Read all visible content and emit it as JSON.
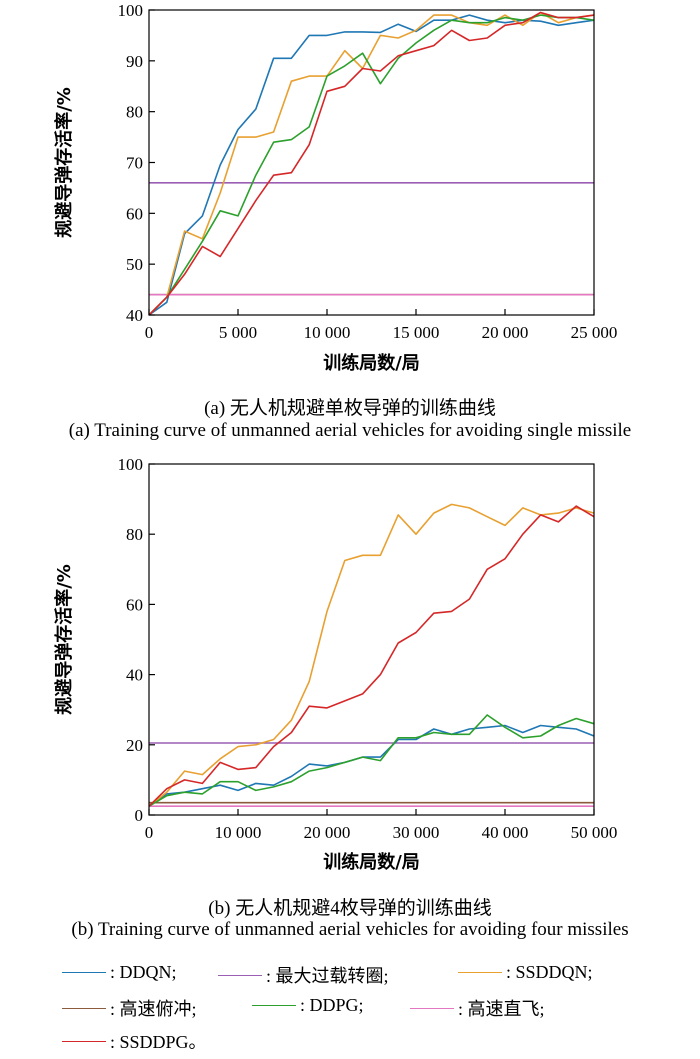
{
  "chart_data": [
    {
      "type": "line",
      "caption_cn": "(a) 无人机规避单枚导弹的训练曲线",
      "caption_en": "(a) Training curve of unmanned aerial vehicles for avoiding single missile",
      "xlabel": "训练局数/局",
      "ylabel": "规避导弹存活率/%",
      "xlim": [
        0,
        25000
      ],
      "ylim": [
        40,
        100
      ],
      "xticks": [
        0,
        5000,
        10000,
        15000,
        20000,
        25000
      ],
      "xtick_labels": [
        "0",
        "5 000",
        "10 000",
        "15 000",
        "20 000",
        "25 000"
      ],
      "yticks": [
        40,
        50,
        60,
        70,
        80,
        90,
        100
      ],
      "ytick_labels": [
        "40",
        "50",
        "60",
        "70",
        "80",
        "90",
        "100"
      ],
      "grid": false,
      "series": [
        {
          "name": "DDQN",
          "color": "#1f77b4",
          "x": [
            0,
            1000,
            2000,
            3000,
            4000,
            5000,
            6000,
            7000,
            8000,
            9000,
            10000,
            11000,
            12000,
            13000,
            14000,
            15000,
            16000,
            17000,
            18000,
            19000,
            20000,
            21000,
            22000,
            23000,
            24000,
            25000
          ],
          "y": [
            40,
            42.5,
            56,
            59.5,
            69.5,
            76.5,
            80.5,
            90.5,
            90.5,
            95,
            95,
            95.7,
            95.7,
            95.6,
            97.2,
            95.8,
            98,
            98,
            99,
            98,
            97.5,
            98,
            97.8,
            97,
            97.5,
            98
          ]
        },
        {
          "name": "最大过载转圈",
          "color": "#9a5fb4",
          "x": [
            0,
            25000
          ],
          "y": [
            66,
            66
          ]
        },
        {
          "name": "SSDDQN",
          "color": "#e8a030",
          "x": [
            0,
            1000,
            2000,
            3000,
            4000,
            5000,
            6000,
            7000,
            8000,
            9000,
            10000,
            11000,
            12000,
            13000,
            14000,
            15000,
            16000,
            17000,
            18000,
            19000,
            20000,
            21000,
            22000,
            23000,
            24000,
            25000
          ],
          "y": [
            40,
            43.5,
            56.5,
            55,
            64,
            75,
            75,
            76,
            86,
            87,
            87,
            92,
            88.5,
            95,
            94.5,
            96,
            99,
            99,
            97.5,
            97,
            99,
            97,
            99.5,
            97.5,
            98.5,
            99
          ]
        },
        {
          "name": "高速俯冲",
          "color": "#8c5a3c",
          "x": [
            0,
            25000
          ],
          "y": [
            44,
            44
          ]
        },
        {
          "name": "DDPG",
          "color": "#2ca02c",
          "x": [
            0,
            1000,
            2000,
            3000,
            4000,
            5000,
            6000,
            7000,
            8000,
            9000,
            10000,
            11000,
            12000,
            13000,
            14000,
            15000,
            16000,
            17000,
            18000,
            19000,
            20000,
            21000,
            22000,
            23000,
            24000,
            25000
          ],
          "y": [
            40,
            43.5,
            49,
            54.5,
            60.5,
            59.5,
            67.5,
            74,
            74.5,
            77,
            87,
            89,
            91.5,
            85.5,
            90.5,
            93.5,
            96,
            98,
            97.5,
            97.5,
            98.5,
            98,
            99,
            98.5,
            98.5,
            98
          ]
        },
        {
          "name": "高速直飞",
          "color": "#e377c2",
          "x": [
            0,
            25000
          ],
          "y": [
            44,
            44
          ]
        },
        {
          "name": "SSDDPG",
          "color": "#d62728",
          "x": [
            0,
            1000,
            2000,
            3000,
            4000,
            5000,
            6000,
            7000,
            8000,
            9000,
            10000,
            11000,
            12000,
            13000,
            14000,
            15000,
            16000,
            17000,
            18000,
            19000,
            20000,
            21000,
            22000,
            23000,
            24000,
            25000
          ],
          "y": [
            40,
            43.5,
            48,
            53.5,
            51.5,
            57,
            62.5,
            67.5,
            68,
            73.5,
            84,
            85,
            88.5,
            88,
            91,
            92,
            93,
            96,
            94,
            94.5,
            97,
            97.5,
            99.5,
            98.5,
            98.5,
            99
          ]
        }
      ]
    },
    {
      "type": "line",
      "caption_cn": "(b) 无人机规避4枚导弹的训练曲线",
      "caption_en": "(b) Training curve of unmanned aerial vehicles for avoiding four missiles",
      "xlabel": "训练局数/局",
      "ylabel": "规避导弹存活率/%",
      "xlim": [
        0,
        50000
      ],
      "ylim": [
        0,
        100
      ],
      "xticks": [
        0,
        10000,
        20000,
        30000,
        40000,
        50000
      ],
      "xtick_labels": [
        "0",
        "10 000",
        "20 000",
        "30 000",
        "40 000",
        "50 000"
      ],
      "yticks": [
        0,
        20,
        40,
        60,
        80,
        100
      ],
      "ytick_labels": [
        "0",
        "20",
        "40",
        "60",
        "80",
        "100"
      ],
      "grid": false,
      "series": [
        {
          "name": "DDQN",
          "color": "#1f77b4",
          "x": [
            0,
            2000,
            4000,
            6000,
            8000,
            10000,
            12000,
            14000,
            16000,
            18000,
            20000,
            22000,
            24000,
            26000,
            28000,
            30000,
            32000,
            34000,
            36000,
            38000,
            40000,
            42000,
            44000,
            46000,
            48000,
            50000
          ],
          "y": [
            2.5,
            6,
            6.5,
            7.5,
            8.5,
            7,
            9,
            8.5,
            11,
            14.5,
            14,
            15,
            16.5,
            16.5,
            21.5,
            21.5,
            24.5,
            23,
            24.5,
            25,
            25.5,
            23.5,
            25.5,
            25,
            24.5,
            22.5
          ]
        },
        {
          "name": "最大过载转圈",
          "color": "#9a5fb4",
          "x": [
            0,
            50000
          ],
          "y": [
            20.5,
            20.5
          ]
        },
        {
          "name": "SSDDQN",
          "color": "#e8a030",
          "x": [
            0,
            2000,
            4000,
            6000,
            8000,
            10000,
            12000,
            14000,
            16000,
            18000,
            20000,
            22000,
            24000,
            26000,
            28000,
            30000,
            32000,
            34000,
            36000,
            38000,
            40000,
            42000,
            44000,
            46000,
            48000,
            50000
          ],
          "y": [
            2.5,
            6.5,
            12.5,
            11.5,
            16,
            19.5,
            20,
            21.5,
            27,
            38,
            58,
            72.5,
            74,
            74,
            85.5,
            80,
            86,
            88.5,
            87.5,
            85,
            82.5,
            87.5,
            85.5,
            86,
            87.5,
            86
          ]
        },
        {
          "name": "高速俯冲",
          "color": "#8c5a3c",
          "x": [
            0,
            50000
          ],
          "y": [
            3.5,
            3.5
          ]
        },
        {
          "name": "DDPG",
          "color": "#2ca02c",
          "x": [
            0,
            2000,
            4000,
            6000,
            8000,
            10000,
            12000,
            14000,
            16000,
            18000,
            20000,
            22000,
            24000,
            26000,
            28000,
            30000,
            32000,
            34000,
            36000,
            38000,
            40000,
            42000,
            44000,
            46000,
            48000,
            50000
          ],
          "y": [
            2.5,
            5.5,
            6.5,
            6,
            9.5,
            9.5,
            7,
            8,
            9.5,
            12.5,
            13.5,
            15,
            16.5,
            15.5,
            22,
            22,
            23.5,
            23,
            23,
            28.5,
            25,
            22,
            22.5,
            25.5,
            27.5,
            26
          ]
        },
        {
          "name": "高速直飞",
          "color": "#e377c2",
          "x": [
            0,
            50000
          ],
          "y": [
            2.5,
            2.5
          ]
        },
        {
          "name": "SSDDPG",
          "color": "#d62728",
          "x": [
            0,
            2000,
            4000,
            6000,
            8000,
            10000,
            12000,
            14000,
            16000,
            18000,
            20000,
            22000,
            24000,
            26000,
            28000,
            30000,
            32000,
            34000,
            36000,
            38000,
            40000,
            42000,
            44000,
            46000,
            48000,
            50000
          ],
          "y": [
            2.5,
            7.5,
            10,
            9,
            15,
            13,
            13.5,
            19.5,
            23.5,
            31,
            30.5,
            32.5,
            34.5,
            40,
            49,
            52,
            57.5,
            58,
            61.5,
            70,
            73,
            80,
            85.5,
            83.5,
            88,
            85
          ]
        }
      ]
    }
  ],
  "legend": [
    {
      "label": ": DDQN;",
      "color": "#1f77b4"
    },
    {
      "label": ": 最大过载转圈;",
      "color": "#9a5fb4"
    },
    {
      "label": ": SSDDQN;",
      "color": "#e8a030"
    },
    {
      "label": ": 高速俯冲;",
      "color": "#8c5a3c"
    },
    {
      "label": ": DDPG;",
      "color": "#2ca02c"
    },
    {
      "label": ": 高速直飞;",
      "color": "#e377c2"
    },
    {
      "label": ": SSDDPG。",
      "color": "#d62728"
    }
  ]
}
